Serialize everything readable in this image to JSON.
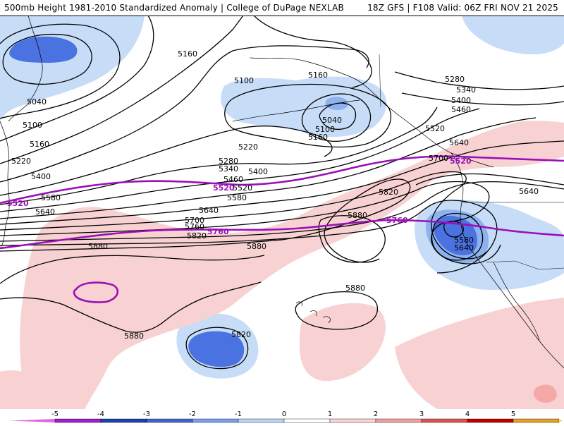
{
  "title": {
    "left": "500mb Height 1981-2010 Standardized Anomaly | College of DuPage NEXLAB",
    "right": "18Z GFS | F108 Valid: 06Z FRI NOV 21 2025"
  },
  "contour_labels": [
    {
      "id": "c5160-a",
      "text": "5160"
    },
    {
      "id": "c5040-a",
      "text": "5040"
    },
    {
      "id": "c5100-a",
      "text": "5100"
    },
    {
      "id": "c5160-b",
      "text": "5160"
    },
    {
      "id": "c5220-a",
      "text": "5220"
    },
    {
      "id": "c5400-a",
      "text": "5400"
    },
    {
      "id": "c5580-a",
      "text": "5580"
    },
    {
      "id": "c5640-a",
      "text": "5640"
    },
    {
      "id": "c5100-b",
      "text": "5100"
    },
    {
      "id": "c5160-c",
      "text": "5160"
    },
    {
      "id": "c5040-b",
      "text": "5040"
    },
    {
      "id": "c5100-c",
      "text": "5100"
    },
    {
      "id": "c5160-d",
      "text": "5160"
    },
    {
      "id": "c5220-b",
      "text": "5220"
    },
    {
      "id": "c5280-a",
      "text": "5280"
    },
    {
      "id": "c5340-a",
      "text": "5340"
    },
    {
      "id": "c5400-b",
      "text": "5400"
    },
    {
      "id": "c5460-a",
      "text": "5460"
    },
    {
      "id": "c5520-a",
      "text": "5520"
    },
    {
      "id": "c5580-b",
      "text": "5580"
    },
    {
      "id": "c5640-b",
      "text": "5640"
    },
    {
      "id": "c5700-a",
      "text": "5700"
    },
    {
      "id": "c5760-a",
      "text": "5760"
    },
    {
      "id": "c5820-a",
      "text": "5820"
    },
    {
      "id": "c5880-a",
      "text": "5880"
    },
    {
      "id": "c5280-b",
      "text": "5280"
    },
    {
      "id": "c5340-b",
      "text": "5340"
    },
    {
      "id": "c5400-c",
      "text": "5400"
    },
    {
      "id": "c5460-b",
      "text": "5460"
    },
    {
      "id": "c5520-b",
      "text": "5520"
    },
    {
      "id": "c5640-c",
      "text": "5640"
    },
    {
      "id": "c5700-b",
      "text": "5700"
    },
    {
      "id": "c5640-d",
      "text": "5640"
    },
    {
      "id": "c5820-b",
      "text": "5820"
    },
    {
      "id": "c5880-b",
      "text": "5880"
    },
    {
      "id": "c5580-c",
      "text": "5580"
    },
    {
      "id": "c5640-e",
      "text": "5640"
    },
    {
      "id": "c5880-c",
      "text": "5880"
    },
    {
      "id": "c5880-d",
      "text": "5880"
    },
    {
      "id": "c5820-c",
      "text": "5820"
    },
    {
      "id": "c5880-e",
      "text": "5880"
    }
  ],
  "highlight_labels": [
    {
      "id": "p5520-a",
      "text": "5520"
    },
    {
      "id": "p5520-b",
      "text": "5520"
    },
    {
      "id": "p5520-c",
      "text": "5520"
    },
    {
      "id": "p5760-a",
      "text": "5760"
    },
    {
      "id": "p5760-b",
      "text": "5760"
    }
  ],
  "colorbar": {
    "ticks": [
      "-5",
      "-4",
      "-3",
      "-2",
      "-1",
      "0",
      "1",
      "2",
      "3",
      "4",
      "5"
    ],
    "colors": [
      "#9b1fd1",
      "#1c3fb6",
      "#3e63d6",
      "#7b9ef0",
      "#bcd3f5",
      "#ffffff",
      "#f9d4d4",
      "#f2a0a0",
      "#e05050",
      "#c00000",
      "#e8a020"
    ],
    "low_end_color": "#e066e0",
    "high_end_color": "#f5d77a"
  },
  "colors": {
    "height_contour": "#000000",
    "highlight_contour": "#9a0fb8",
    "negative_light": "#c6dcf7",
    "negative_mid": "#8cb2f0",
    "negative_strong": "#4a72e0",
    "positive_light": "#f8d2d2",
    "positive_mid": "#f4a8a8",
    "coastline": "#000000"
  }
}
